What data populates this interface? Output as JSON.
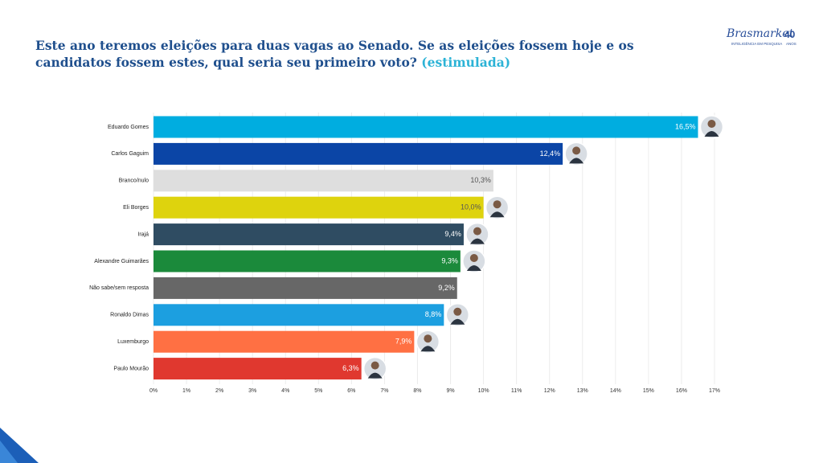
{
  "chart_data": {
    "type": "bar",
    "orientation": "horizontal",
    "title": "Este ano teremos eleições para duas vagas ao Senado. Se as eleições fossem hoje e os candidatos fossem estes, qual seria seu primeiro voto?",
    "subtitle": "(estimulada)",
    "categories": [
      "Eduardo Gomes",
      "Carlos Gaguim",
      "Branco/nulo",
      "Eli Borges",
      "Irajá",
      "Alexandre Guimarães",
      "Não sabe/sem resposta",
      "Ronaldo Dimas",
      "Luxemburgo",
      "Paulo Mourão"
    ],
    "values": [
      16.5,
      12.4,
      10.3,
      10.0,
      9.4,
      9.3,
      9.2,
      8.8,
      7.9,
      6.3
    ],
    "value_labels": [
      "16,5%",
      "12,4%",
      "10,3%",
      "10,0%",
      "9,4%",
      "9,3%",
      "9,2%",
      "8,8%",
      "7,9%",
      "6,3%"
    ],
    "colors": [
      "#00ade0",
      "#0b45a6",
      "#dedede",
      "#ded30d",
      "#2f4c62",
      "#1b8a3b",
      "#676767",
      "#1c9fe0",
      "#ff7043",
      "#e0382f"
    ],
    "xlim": [
      0,
      17
    ],
    "xticks": [
      {
        "value": 0,
        "label": "0%"
      },
      {
        "value": 1,
        "label": "1%"
      },
      {
        "value": 2,
        "label": "2%"
      },
      {
        "value": 3,
        "label": "3%"
      },
      {
        "value": 4,
        "label": "4%"
      },
      {
        "value": 5,
        "label": "5%"
      },
      {
        "value": 6,
        "label": "6%"
      },
      {
        "value": 7,
        "label": "7%"
      },
      {
        "value": 8,
        "label": "8%"
      },
      {
        "value": 9,
        "label": "9%"
      },
      {
        "value": 10,
        "label": "10%"
      },
      {
        "value": 11,
        "label": "11%"
      },
      {
        "value": 12,
        "label": "12%"
      },
      {
        "value": 13,
        "label": "13%"
      },
      {
        "value": 14,
        "label": "14%"
      },
      {
        "value": 15,
        "label": "15%"
      },
      {
        "value": 16,
        "label": "16%"
      },
      {
        "value": 17,
        "label": "17%"
      }
    ],
    "grid": true
  },
  "logo": {
    "name": "Brasmarket",
    "years": "40",
    "tagline": "INTELIGÊNCIA EM PESQUISA",
    "years_word": "ANOS"
  }
}
